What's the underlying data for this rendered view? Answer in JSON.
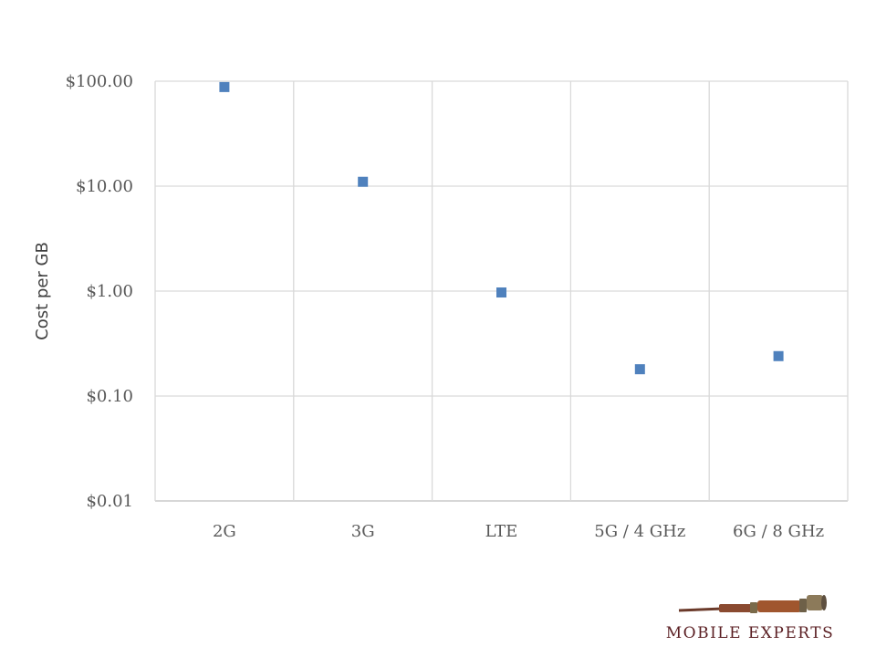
{
  "chart_data": {
    "type": "scatter",
    "ylabel": "Cost per GB",
    "y_scale": "log",
    "ylim": [
      0.01,
      100
    ],
    "y_ticks": [
      "$100.00",
      "$10.00",
      "$1.00",
      "$0.10",
      "$0.01"
    ],
    "y_tick_values": [
      100,
      10,
      1,
      0.1,
      0.01
    ],
    "categories": [
      "2G",
      "3G",
      "LTE",
      "5G / 4 GHz",
      "6G / 8 GHz"
    ],
    "series": [
      {
        "values": [
          88,
          11,
          0.97,
          0.18,
          0.24
        ]
      }
    ],
    "marker_color": "#4f81bd",
    "grid": true
  },
  "logo": {
    "text": "MOBILE EXPERTS",
    "icon": "spyglass-icon"
  }
}
